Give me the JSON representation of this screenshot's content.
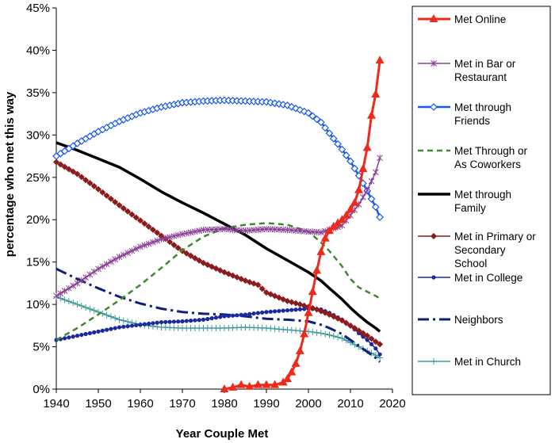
{
  "chart_data": {
    "type": "line",
    "title": "",
    "xlabel": "Year Couple Met",
    "ylabel": "percentage who met this way",
    "xlim": [
      1940,
      2020
    ],
    "ylim": [
      0,
      45
    ],
    "x_ticks": [
      "1940",
      "1950",
      "1960",
      "1970",
      "1980",
      "1990",
      "2000",
      "2010",
      "2020"
    ],
    "y_ticks": [
      "0%",
      "5%",
      "10%",
      "15%",
      "20%",
      "25%",
      "30%",
      "35%",
      "40%",
      "45%"
    ],
    "grid": false,
    "legend_position": "right",
    "series": [
      {
        "name": "Met Online",
        "color": "#ee2a1c",
        "marker": "triangle",
        "dash": "solid",
        "width": 3,
        "label_lines": [
          "Met Online"
        ],
        "points": [
          [
            1980,
            0
          ],
          [
            1982,
            0.2
          ],
          [
            1984,
            0.5
          ],
          [
            1986,
            0.3
          ],
          [
            1988,
            0.5
          ],
          [
            1990,
            0.5
          ],
          [
            1992,
            0.5
          ],
          [
            1994,
            0.8
          ],
          [
            1995,
            1.2
          ],
          [
            1996,
            2.0
          ],
          [
            1997,
            3.0
          ],
          [
            1998,
            4.5
          ],
          [
            1999,
            6.5
          ],
          [
            2000,
            9.0
          ],
          [
            2001,
            11.5
          ],
          [
            2002,
            14.0
          ],
          [
            2003,
            16.2
          ],
          [
            2004,
            17.8
          ],
          [
            2005,
            18.7
          ],
          [
            2006,
            19.2
          ],
          [
            2007,
            19.6
          ],
          [
            2008,
            20.0
          ],
          [
            2009,
            20.5
          ],
          [
            2010,
            21.2
          ],
          [
            2011,
            22.0
          ],
          [
            2012,
            23.5
          ],
          [
            2013,
            26.0
          ],
          [
            2014,
            28.5
          ],
          [
            2015,
            32.3
          ],
          [
            2016,
            34.8
          ],
          [
            2017,
            38.8
          ]
        ]
      },
      {
        "name": "Met in Bar or Restaurant",
        "color": "#8a3f96",
        "marker": "asterisk",
        "dash": "solid",
        "width": 1.5,
        "label_lines": [
          "Met in Bar or",
          "Restaurant"
        ],
        "points": [
          [
            1940,
            11.0
          ],
          [
            1945,
            12.5
          ],
          [
            1950,
            14.2
          ],
          [
            1955,
            15.6
          ],
          [
            1960,
            16.8
          ],
          [
            1965,
            17.7
          ],
          [
            1970,
            18.3
          ],
          [
            1975,
            18.8
          ],
          [
            1980,
            18.9
          ],
          [
            1985,
            18.7
          ],
          [
            1990,
            18.9
          ],
          [
            1995,
            18.8
          ],
          [
            2000,
            18.6
          ],
          [
            2003,
            18.5
          ],
          [
            2005,
            18.8
          ],
          [
            2008,
            19.3
          ],
          [
            2010,
            20.5
          ],
          [
            2012,
            21.8
          ],
          [
            2014,
            23.5
          ],
          [
            2016,
            25.6
          ],
          [
            2017,
            27.3
          ]
        ]
      },
      {
        "name": "Met through Friends",
        "color": "#1757f2",
        "marker": "diamond-open",
        "dash": "solid",
        "width": 2.5,
        "label_lines": [
          "Met through",
          "Friends"
        ],
        "points": [
          [
            1940,
            27.5
          ],
          [
            1945,
            29.0
          ],
          [
            1950,
            30.4
          ],
          [
            1955,
            31.6
          ],
          [
            1960,
            32.6
          ],
          [
            1965,
            33.3
          ],
          [
            1970,
            33.8
          ],
          [
            1975,
            34.0
          ],
          [
            1980,
            34.1
          ],
          [
            1985,
            34.0
          ],
          [
            1990,
            33.9
          ],
          [
            1995,
            33.5
          ],
          [
            2000,
            32.6
          ],
          [
            2003,
            31.5
          ],
          [
            2005,
            30.2
          ],
          [
            2008,
            28.3
          ],
          [
            2010,
            26.9
          ],
          [
            2012,
            25.2
          ],
          [
            2014,
            23.4
          ],
          [
            2016,
            21.5
          ],
          [
            2017,
            20.3
          ]
        ]
      },
      {
        "name": "Met Through or As Coworkers",
        "color": "#3d8a2e",
        "marker": "none",
        "dash": "7,5",
        "width": 2.5,
        "label_lines": [
          "Met Through or",
          "As Coworkers"
        ],
        "points": [
          [
            1940,
            5.8
          ],
          [
            1945,
            7.2
          ],
          [
            1950,
            8.8
          ],
          [
            1955,
            10.5
          ],
          [
            1960,
            12.3
          ],
          [
            1965,
            14.3
          ],
          [
            1970,
            16.4
          ],
          [
            1975,
            18.0
          ],
          [
            1980,
            19.0
          ],
          [
            1985,
            19.4
          ],
          [
            1990,
            19.6
          ],
          [
            1995,
            19.4
          ],
          [
            2000,
            18.6
          ],
          [
            2003,
            17.3
          ],
          [
            2005,
            16.3
          ],
          [
            2008,
            14.5
          ],
          [
            2010,
            13.0
          ],
          [
            2012,
            12.0
          ],
          [
            2014,
            11.5
          ],
          [
            2016,
            11.0
          ],
          [
            2017,
            10.7
          ]
        ]
      },
      {
        "name": "Met through Family",
        "color": "#000000",
        "marker": "none",
        "dash": "solid",
        "width": 3.5,
        "label_lines": [
          "Met through",
          "Family"
        ],
        "points": [
          [
            1940,
            29.1
          ],
          [
            1945,
            28.2
          ],
          [
            1950,
            27.2
          ],
          [
            1955,
            26.2
          ],
          [
            1960,
            24.8
          ],
          [
            1965,
            23.3
          ],
          [
            1970,
            22.0
          ],
          [
            1975,
            20.8
          ],
          [
            1980,
            19.5
          ],
          [
            1985,
            18.2
          ],
          [
            1990,
            16.6
          ],
          [
            1995,
            15.2
          ],
          [
            2000,
            13.8
          ],
          [
            2003,
            12.8
          ],
          [
            2005,
            11.9
          ],
          [
            2008,
            10.6
          ],
          [
            2010,
            9.6
          ],
          [
            2012,
            8.7
          ],
          [
            2014,
            7.9
          ],
          [
            2016,
            7.2
          ],
          [
            2017,
            6.8
          ]
        ]
      },
      {
        "name": "Met in Primary or Secondary School",
        "color": "#8b1c1c",
        "marker": "diamond-filled",
        "dash": "solid",
        "width": 1.5,
        "label_lines": [
          "Met in Primary or",
          "Secondary",
          "School"
        ],
        "points": [
          [
            1940,
            26.8
          ],
          [
            1945,
            25.4
          ],
          [
            1950,
            23.6
          ],
          [
            1955,
            21.7
          ],
          [
            1960,
            19.9
          ],
          [
            1965,
            18.1
          ],
          [
            1970,
            16.3
          ],
          [
            1975,
            14.9
          ],
          [
            1980,
            13.8
          ],
          [
            1985,
            12.8
          ],
          [
            1988,
            12.3
          ],
          [
            1990,
            11.4
          ],
          [
            1995,
            10.4
          ],
          [
            1998,
            10.0
          ],
          [
            2000,
            9.7
          ],
          [
            2002,
            9.4
          ],
          [
            2005,
            8.8
          ],
          [
            2008,
            8.1
          ],
          [
            2010,
            7.5
          ],
          [
            2012,
            6.9
          ],
          [
            2014,
            6.3
          ],
          [
            2016,
            5.6
          ],
          [
            2017,
            5.3
          ]
        ]
      },
      {
        "name": "Met in College",
        "color": "#1a2a9e",
        "marker": "circle",
        "dash": "solid",
        "width": 1.5,
        "label_lines": [
          "Met in College"
        ],
        "points": [
          [
            1940,
            5.8
          ],
          [
            1945,
            6.3
          ],
          [
            1950,
            6.8
          ],
          [
            1955,
            7.3
          ],
          [
            1960,
            7.6
          ],
          [
            1965,
            7.9
          ],
          [
            1970,
            8.0
          ],
          [
            1975,
            8.2
          ],
          [
            1980,
            8.6
          ],
          [
            1985,
            8.8
          ],
          [
            1990,
            9.1
          ],
          [
            1995,
            9.3
          ],
          [
            2000,
            9.5
          ],
          [
            2003,
            9.4
          ],
          [
            2005,
            9.0
          ],
          [
            2008,
            8.2
          ],
          [
            2010,
            7.5
          ],
          [
            2012,
            6.6
          ],
          [
            2014,
            5.8
          ],
          [
            2016,
            4.8
          ],
          [
            2017,
            4.1
          ]
        ]
      },
      {
        "name": "Neighbors",
        "color": "#0d1f7a",
        "marker": "none",
        "dash": "14,5,3,5",
        "width": 3,
        "label_lines": [
          "Neighbors"
        ],
        "points": [
          [
            1940,
            14.2
          ],
          [
            1945,
            13.0
          ],
          [
            1950,
            11.9
          ],
          [
            1955,
            10.9
          ],
          [
            1960,
            10.1
          ],
          [
            1965,
            9.5
          ],
          [
            1970,
            9.1
          ],
          [
            1975,
            8.9
          ],
          [
            1980,
            8.8
          ],
          [
            1985,
            8.6
          ],
          [
            1990,
            8.3
          ],
          [
            1995,
            8.2
          ],
          [
            2000,
            8.0
          ],
          [
            2003,
            7.6
          ],
          [
            2005,
            7.2
          ],
          [
            2008,
            6.5
          ],
          [
            2010,
            5.8
          ],
          [
            2012,
            5.1
          ],
          [
            2014,
            4.4
          ],
          [
            2016,
            3.7
          ],
          [
            2017,
            3.2
          ]
        ]
      },
      {
        "name": "Met in Church",
        "color": "#3f9999",
        "marker": "plus",
        "dash": "solid",
        "width": 1.5,
        "label_lines": [
          "Met in Church"
        ],
        "points": [
          [
            1940,
            10.9
          ],
          [
            1945,
            10.0
          ],
          [
            1950,
            9.1
          ],
          [
            1955,
            8.2
          ],
          [
            1960,
            7.6
          ],
          [
            1965,
            7.3
          ],
          [
            1970,
            7.2
          ],
          [
            1975,
            7.2
          ],
          [
            1980,
            7.2
          ],
          [
            1985,
            7.3
          ],
          [
            1990,
            7.2
          ],
          [
            1995,
            7.0
          ],
          [
            2000,
            6.8
          ],
          [
            2003,
            6.6
          ],
          [
            2005,
            6.4
          ],
          [
            2008,
            6.0
          ],
          [
            2010,
            5.5
          ],
          [
            2012,
            5.0
          ],
          [
            2014,
            4.5
          ],
          [
            2016,
            4.0
          ],
          [
            2017,
            3.7
          ]
        ]
      }
    ]
  }
}
